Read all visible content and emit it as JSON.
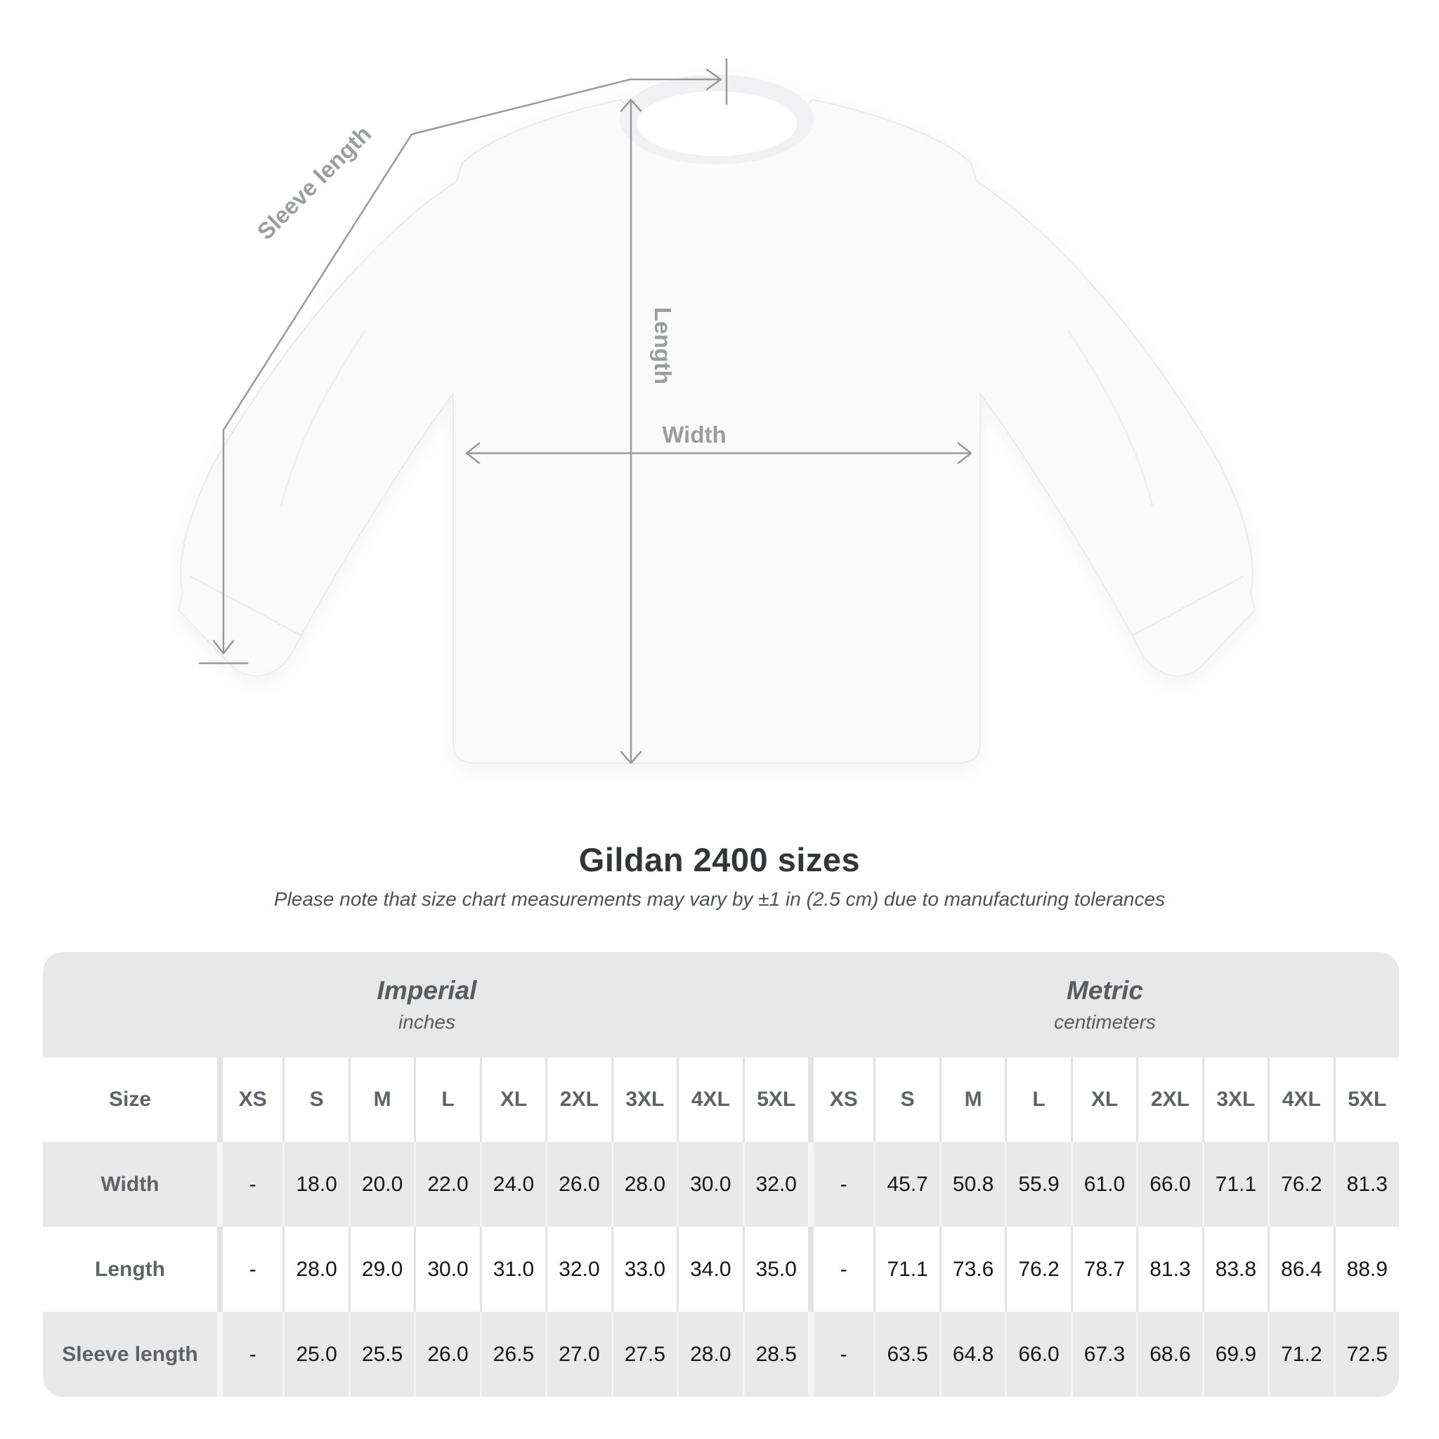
{
  "title": "Gildan 2400 sizes",
  "subtitle": "Please note that size chart measurements may vary by ±1 in (2.5 cm) due to manufacturing tolerances",
  "diagram": {
    "sleeve_label": "Sleeve length",
    "length_label": "Length",
    "width_label": "Width",
    "arrow_color": "#97999c",
    "label_color": "#999da0"
  },
  "table": {
    "size_header": "Size",
    "sizes": [
      "XS",
      "S",
      "M",
      "L",
      "XL",
      "2XL",
      "3XL",
      "4XL",
      "5XL"
    ],
    "unit_groups": [
      {
        "name": "Imperial",
        "unit": "inches"
      },
      {
        "name": "Metric",
        "unit": "centimeters"
      }
    ],
    "rows": [
      {
        "label": "Width",
        "imperial": [
          "-",
          "18.0",
          "20.0",
          "22.0",
          "24.0",
          "26.0",
          "28.0",
          "30.0",
          "32.0"
        ],
        "metric": [
          "-",
          "45.7",
          "50.8",
          "55.9",
          "61.0",
          "66.0",
          "71.1",
          "76.2",
          "81.3"
        ]
      },
      {
        "label": "Length",
        "imperial": [
          "-",
          "28.0",
          "29.0",
          "30.0",
          "31.0",
          "32.0",
          "33.0",
          "34.0",
          "35.0"
        ],
        "metric": [
          "-",
          "71.1",
          "73.6",
          "76.2",
          "78.7",
          "81.3",
          "83.8",
          "86.4",
          "88.9"
        ]
      },
      {
        "label": "Sleeve length",
        "imperial": [
          "-",
          "25.0",
          "25.5",
          "26.0",
          "26.5",
          "27.0",
          "27.5",
          "28.0",
          "28.5"
        ],
        "metric": [
          "-",
          "63.5",
          "64.8",
          "66.0",
          "67.3",
          "68.6",
          "69.9",
          "71.2",
          "72.5"
        ]
      }
    ]
  },
  "colors": {
    "band_gray": "#e8e8e8",
    "row_gray": "#e9e9e9",
    "header_text": "#5d6367",
    "value_text": "#161616"
  }
}
